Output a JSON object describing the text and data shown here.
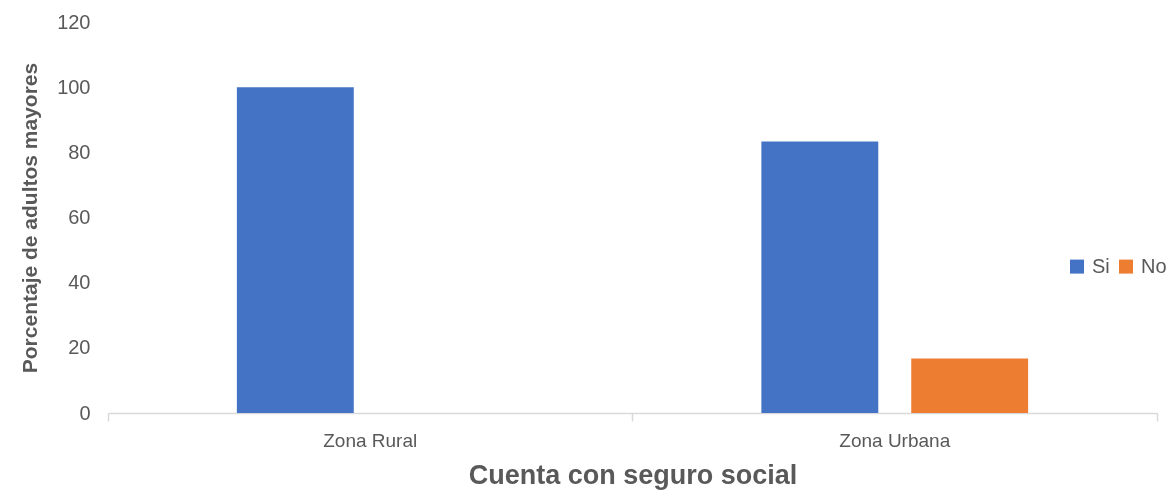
{
  "chart_data": {
    "type": "bar",
    "xlabel": "Cuenta con seguro social",
    "ylabel": "Porcentaje de adultos mayores",
    "categories": [
      "Zona Rural",
      "Zona Urbana"
    ],
    "series": [
      {
        "name": "Si",
        "color": "#4472c4",
        "values": [
          100,
          83.3
        ]
      },
      {
        "name": "No",
        "color": "#ed7d31",
        "values": [
          0,
          16.7
        ]
      }
    ],
    "ylim": [
      0,
      120
    ],
    "yticks": [
      0,
      20,
      40,
      60,
      80,
      100,
      120
    ],
    "legend": "right"
  }
}
